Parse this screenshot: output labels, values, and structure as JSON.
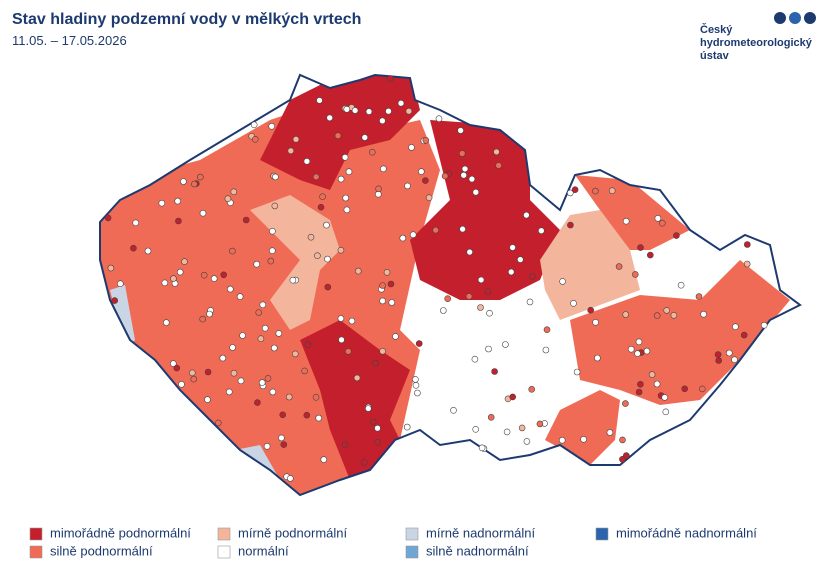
{
  "header": {
    "title": "Stav hladiny podzemní vody v mělkých vrtech",
    "subtitle": "11.05. – 17.05.2026"
  },
  "logo": {
    "lines": [
      "Český",
      "hydrometeorologický",
      "ústav"
    ]
  },
  "legend": {
    "items": [
      {
        "label": "mimořádně podnormální",
        "color": "#c41f2c"
      },
      {
        "label": "silně podnormální",
        "color": "#ef6b55"
      },
      {
        "label": "mírně podnormální",
        "color": "#f4b59d"
      },
      {
        "label": "normální",
        "color": "#ffffff"
      },
      {
        "label": "mírně nadnormální",
        "color": "#c9d5e5"
      },
      {
        "label": "silně nadnormální",
        "color": "#6ea6d4"
      },
      {
        "label": "mimořádně nadnormální",
        "color": "#2b63ad"
      }
    ]
  }
}
